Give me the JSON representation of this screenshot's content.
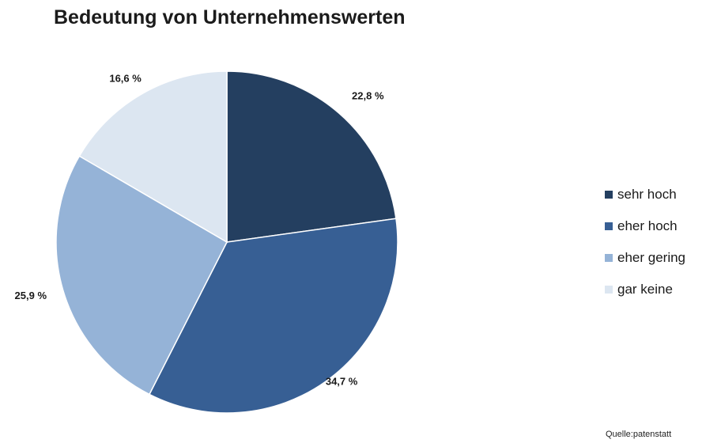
{
  "chart_data": {
    "type": "pie",
    "title": "Bedeutung von Unternehmenswerten",
    "categories": [
      "sehr hoch",
      "eher hoch",
      "eher gering",
      "gar keine"
    ],
    "values": [
      22.8,
      34.7,
      25.9,
      16.6
    ],
    "data_labels": [
      "22,8 %",
      "34,7 %",
      "25,9 %",
      "16,6 %"
    ],
    "colors": [
      "#243f60",
      "#375f94",
      "#95b3d7",
      "#dce6f1"
    ],
    "start": "12 o'clock",
    "direction": "clockwise",
    "legend": "right"
  },
  "source": "Quelle:patenstatt"
}
